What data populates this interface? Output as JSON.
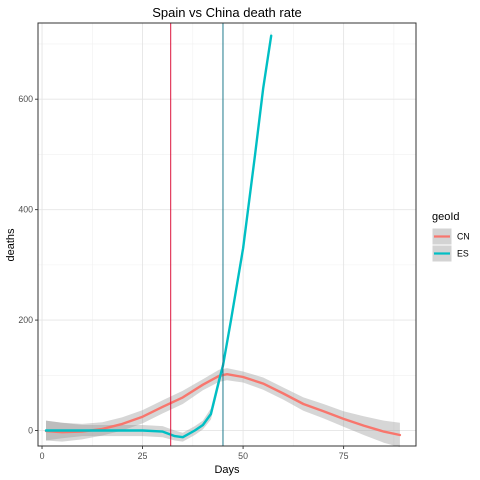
{
  "chart_data": {
    "type": "line",
    "title": "Spain vs China death rate",
    "xlabel": "Days",
    "ylabel": "deaths",
    "xlim": [
      -1,
      93
    ],
    "ylim": [
      -28,
      738
    ],
    "x_ticks": [
      0,
      25,
      50,
      75
    ],
    "y_ticks": [
      0,
      200,
      400,
      600
    ],
    "x_tick_labels": [
      "0",
      "25",
      "50",
      "75"
    ],
    "y_tick_labels": [
      "0",
      "200",
      "400",
      "600"
    ],
    "grid": true,
    "legend": {
      "title": "geoId",
      "position": "right",
      "entries": [
        {
          "label": "CN",
          "color": "#F8766D"
        },
        {
          "label": "ES",
          "color": "#00BFC4"
        }
      ]
    },
    "vlines": [
      {
        "x": 32,
        "color": "#DC143C"
      },
      {
        "x": 45,
        "color": "#1F7A8C"
      }
    ],
    "series": [
      {
        "name": "CN",
        "color": "#F8766D",
        "x": [
          1,
          5,
          10,
          15,
          20,
          25,
          30,
          35,
          40,
          44,
          46,
          50,
          55,
          60,
          65,
          70,
          75,
          80,
          85,
          89
        ],
        "y": [
          -1,
          -3,
          -2,
          3,
          12,
          25,
          43,
          60,
          83,
          99,
          102,
          97,
          85,
          67,
          48,
          35,
          21,
          9,
          -2,
          -8
        ],
        "lower": [
          -18,
          -20,
          -16,
          -9,
          0,
          13,
          31,
          48,
          73,
          88,
          91,
          87,
          74,
          56,
          36,
          22,
          7,
          -8,
          -22,
          -30
        ],
        "upper": [
          18,
          14,
          12,
          15,
          24,
          37,
          55,
          72,
          93,
          110,
          113,
          107,
          96,
          78,
          60,
          48,
          35,
          26,
          18,
          14
        ]
      },
      {
        "name": "ES",
        "color": "#00BFC4",
        "x": [
          1,
          5,
          10,
          15,
          20,
          25,
          30,
          33,
          35,
          38,
          40,
          42,
          44,
          45,
          47,
          50,
          53,
          55,
          57
        ],
        "y": [
          0,
          0,
          0,
          0,
          0,
          0,
          -2,
          -10,
          -12,
          0,
          10,
          30,
          90,
          118,
          200,
          330,
          500,
          620,
          715
        ],
        "lower": [
          -18,
          -14,
          -10,
          -10,
          -10,
          -10,
          -12,
          -18,
          -20,
          -8,
          2,
          20,
          80,
          110,
          190,
          320,
          490,
          610,
          705
        ],
        "upper": [
          18,
          14,
          10,
          10,
          10,
          10,
          8,
          0,
          -4,
          8,
          18,
          40,
          100,
          126,
          210,
          340,
          510,
          630,
          725
        ]
      }
    ]
  }
}
